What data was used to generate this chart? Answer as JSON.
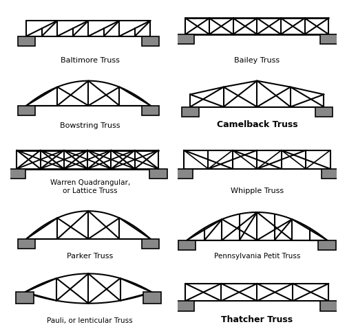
{
  "bg": "#ffffff",
  "lc": "#000000",
  "fc": "#888888",
  "lw": 1.5,
  "titles": [
    "Baltimore Truss",
    "Bailey Truss",
    "Bowstring Truss",
    "Camelback Truss",
    "Warren Quadrangular,\nor Lattice Truss",
    "Whipple Truss",
    "Parker Truss",
    "Pennsylvania Petit Truss",
    "Pauli, or lenticular Truss",
    "Thatcher Truss"
  ],
  "title_bold": [
    false,
    false,
    false,
    true,
    false,
    false,
    false,
    false,
    false,
    true
  ],
  "title_fontsize": [
    8,
    8,
    8,
    9,
    7.5,
    8,
    8,
    7.5,
    7.5,
    9
  ]
}
